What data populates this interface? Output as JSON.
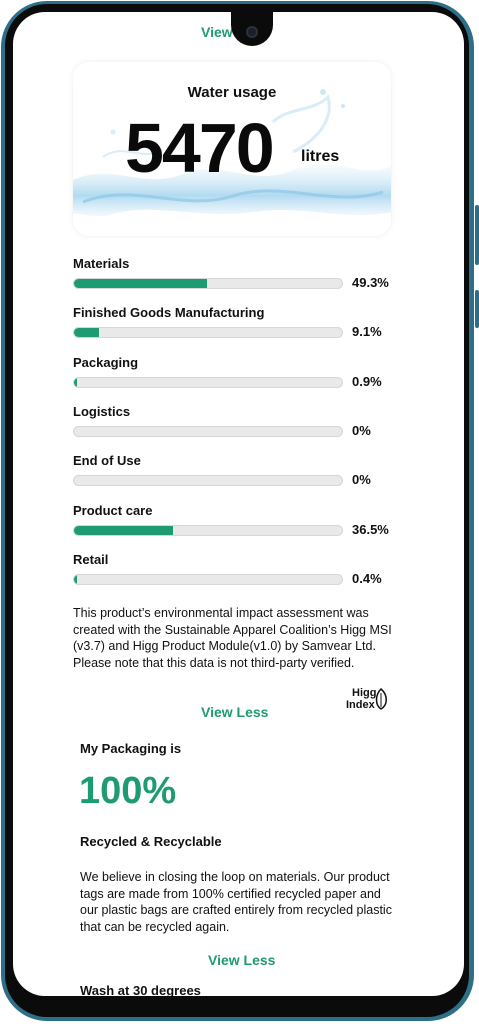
{
  "top_link": "View Less",
  "water": {
    "title": "Water usage",
    "value": "5470",
    "unit": "litres"
  },
  "breakdown": [
    {
      "label": "Materials",
      "percent_text": "49.3%",
      "fraction": 0.493
    },
    {
      "label": "Finished Goods Manufacturing",
      "percent_text": "9.1%",
      "fraction": 0.091
    },
    {
      "label": "Packaging",
      "percent_text": "0.9%",
      "fraction": 0.009
    },
    {
      "label": "Logistics",
      "percent_text": "0%",
      "fraction": 0.0
    },
    {
      "label": "End of Use",
      "percent_text": "0%",
      "fraction": 0.0
    },
    {
      "label": "Product care",
      "percent_text": "36.5%",
      "fraction": 0.365
    },
    {
      "label": "Retail",
      "percent_text": "0.4%",
      "fraction": 0.004
    }
  ],
  "note": "This product’s environmental impact assessment was created with the Sustainable Apparel Coalition’s Higg MSI (v3.7) and Higg Product Module(v1.0) by Samvear Ltd. Please note that this data is not third-party verified.",
  "higg_logo": {
    "line1": "Higg",
    "line2": "Index"
  },
  "view_less_1": "View Less",
  "packaging": {
    "title": "My Packaging is",
    "value": "100%",
    "subtitle": "Recycled & Recyclable",
    "text": "We believe in closing the loop on materials. Our product tags are made from 100% certified recycled paper and our plastic bags are crafted entirely from recycled plastic that can be recycled again."
  },
  "view_less_2": "View Less",
  "wash_title": "Wash at 30 degrees",
  "colors": {
    "accent": "#1e9b72",
    "frame": "#2c6f86",
    "track": "#e9e9e9"
  }
}
